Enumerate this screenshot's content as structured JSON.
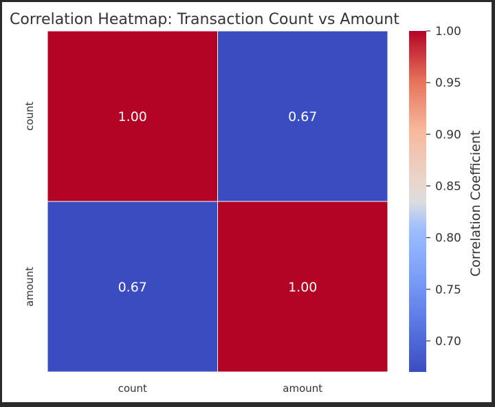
{
  "chart_data": {
    "type": "heatmap",
    "title": "Correlation Heatmap: Transaction Count vs Amount",
    "x_categories": [
      "count",
      "amount"
    ],
    "y_categories": [
      "count",
      "amount"
    ],
    "values": [
      [
        1.0,
        0.67
      ],
      [
        0.67,
        1.0
      ]
    ],
    "annotations": [
      [
        "1.00",
        "0.67"
      ],
      [
        "0.67",
        "1.00"
      ]
    ],
    "colormap": "coolwarm",
    "colorbar": {
      "label": "Correlation Coefficient",
      "range": [
        0.67,
        1.0
      ],
      "ticks": [
        0.7,
        0.75,
        0.8,
        0.85,
        0.9,
        0.95,
        1.0
      ],
      "tick_labels": [
        "0.70",
        "0.75",
        "0.80",
        "0.85",
        "0.90",
        "0.95",
        "1.00"
      ]
    },
    "colors": {
      "high": "#b40426",
      "low": "#3b4cc0",
      "cell_border": "#ffffff",
      "annotation_text": "#ffffff"
    }
  }
}
